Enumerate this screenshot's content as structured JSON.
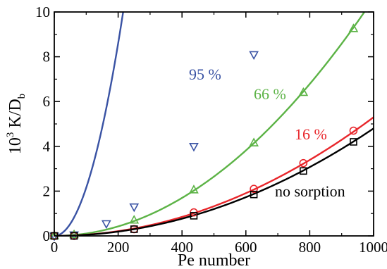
{
  "chart_data": {
    "type": "line",
    "title": "",
    "xlabel": "Pe number",
    "ylabel_main": "10",
    "ylabel_sup": "3",
    "ylabel_rest": " K/D",
    "ylabel_sub": "b",
    "xlim": [
      0,
      1000
    ],
    "ylim": [
      0,
      10
    ],
    "xticks": [
      0,
      200,
      400,
      600,
      800,
      1000
    ],
    "yticks": [
      0,
      2,
      4,
      6,
      8,
      10
    ],
    "xtick_labels": [
      "0",
      "200",
      "400",
      "600",
      "800",
      "1000"
    ],
    "ytick_labels": [
      "0",
      "2",
      "4",
      "6",
      "8",
      "10"
    ],
    "minor_xticks": [
      100,
      300,
      500,
      700,
      900
    ],
    "minor_yticks": [
      1,
      3,
      5,
      7,
      9
    ],
    "grid": false,
    "series": [
      {
        "name": "95 %",
        "label": "95 %",
        "color": "#3a53a4",
        "marker": "triangle-down",
        "points": [
          [
            0,
            0.0
          ],
          [
            62,
            0.05
          ],
          [
            163,
            0.55
          ],
          [
            250,
            1.3
          ],
          [
            437,
            4.0
          ],
          [
            625,
            8.1
          ]
        ],
        "curve_coeff": [
          0.04,
          0.000215
        ]
      },
      {
        "name": "66 %",
        "label": "66 %",
        "color": "#5cb346",
        "marker": "triangle-up",
        "points": [
          [
            0,
            0.0
          ],
          [
            62,
            0.05
          ],
          [
            250,
            0.7
          ],
          [
            437,
            2.05
          ],
          [
            625,
            4.15
          ],
          [
            780,
            6.4
          ],
          [
            937,
            9.25
          ]
        ],
        "curve_coeff": [
          0.05,
          1.06e-05
        ]
      },
      {
        "name": "16 %",
        "label": "16 %",
        "color": "#e8262b",
        "marker": "circle",
        "points": [
          [
            0,
            0.0
          ],
          [
            62,
            0.0
          ],
          [
            250,
            0.3
          ],
          [
            437,
            1.05
          ],
          [
            625,
            2.1
          ],
          [
            780,
            3.25
          ],
          [
            937,
            4.7
          ]
        ],
        "curve_coeff": [
          0.05,
          5.3e-06
        ]
      },
      {
        "name": "no sorption",
        "label": "no sorption",
        "color": "#000000",
        "marker": "square",
        "points": [
          [
            0,
            0.0
          ],
          [
            62,
            0.0
          ],
          [
            250,
            0.3
          ],
          [
            437,
            0.9
          ],
          [
            625,
            1.85
          ],
          [
            780,
            2.9
          ],
          [
            937,
            4.2
          ]
        ],
        "curve_coeff": [
          0.0,
          4.8e-06
        ]
      }
    ]
  }
}
